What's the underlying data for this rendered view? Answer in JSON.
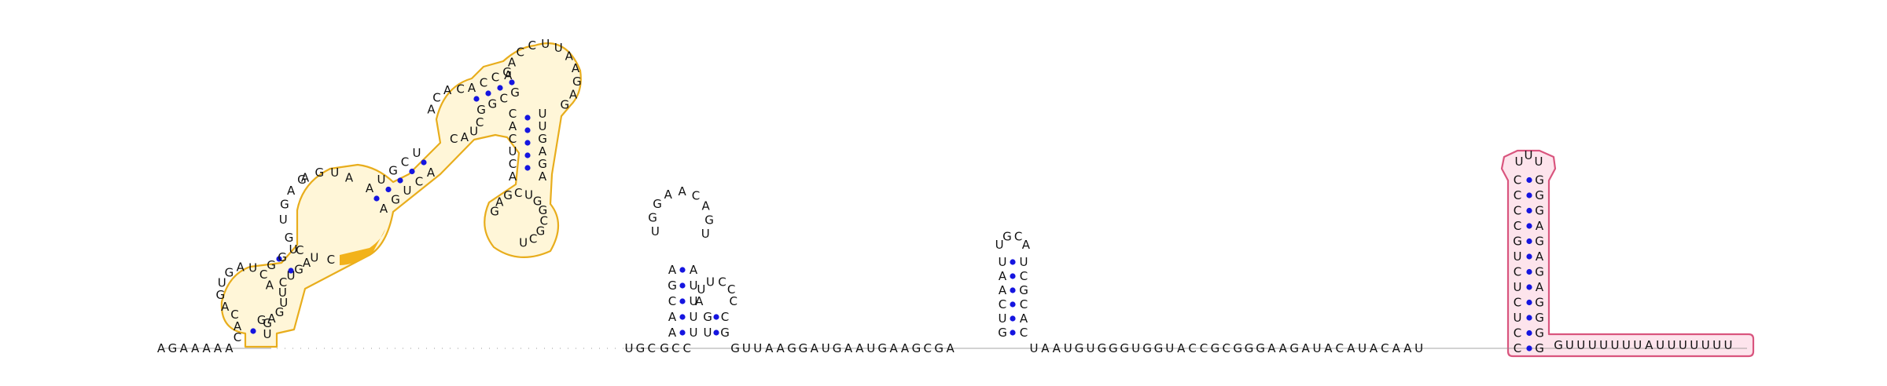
{
  "colors": {
    "highlight_orange": "#e8ad1c",
    "highlight_pink": "#d9557e",
    "pair_dot": "#1515e0"
  },
  "strands": {
    "five_prime": "AGAAAAA",
    "linker": "UGC",
    "hairpin2_stem_5p": "AACGA",
    "hairpin2_loop": "UGGAACAGU",
    "hairpin2_stem_3p": "AUUUU",
    "inter2_3": "GCC",
    "hairpin3_5p": "GU",
    "hairpin3_loop": "UUCC",
    "hairpin3_3p": "GC",
    "mid1": "GUUAAGGAUGAAUGAAGCGA",
    "hairpin4_5p": "GUCAAU",
    "hairpin4_loop": "GCA",
    "hairpin4_3p": "UCGCAC",
    "mid2": "UAAUGUGGGUGGUACCGCGGGAAGAUACAUACAAU",
    "hairpin5_5p": "CCUCUCUGCCCC",
    "hairpin5_loop": "UUU",
    "hairpin5_3p": "GGGGAGAGAGGG",
    "three_prime": "GUUUUUUUAUUUUUUU"
  }
}
